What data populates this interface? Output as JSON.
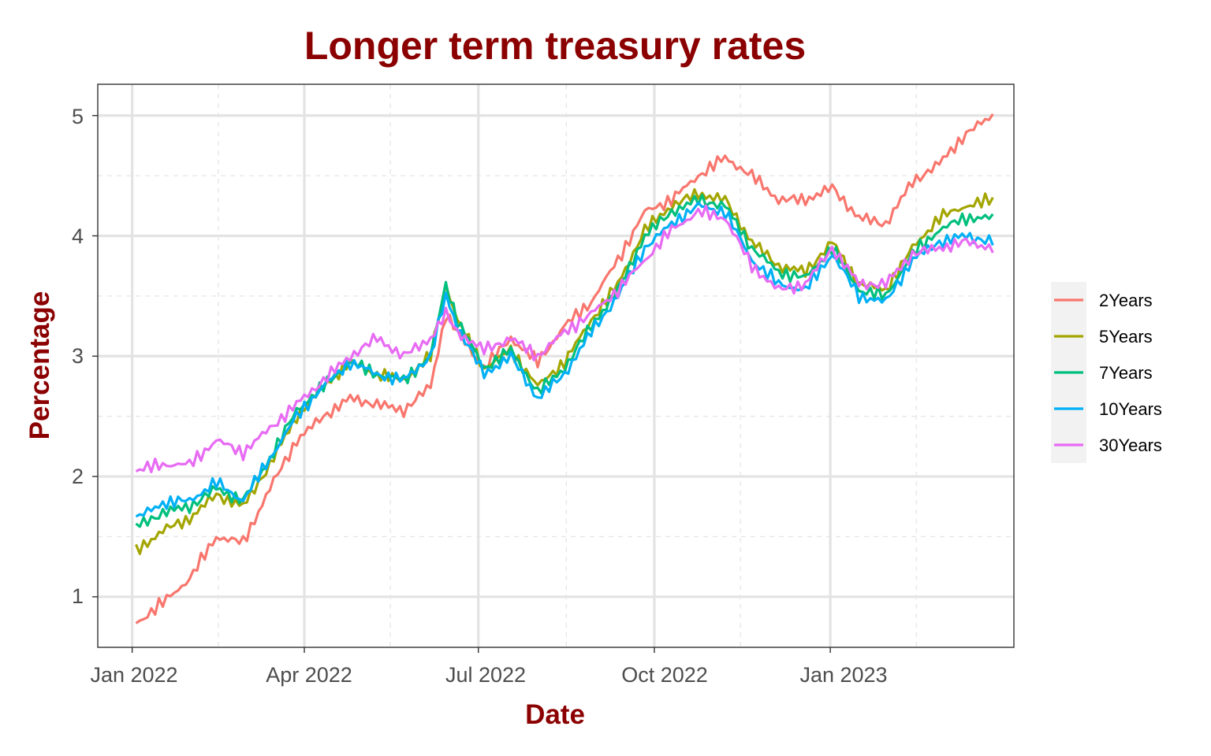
{
  "chart_data": {
    "type": "line",
    "title": "Longer term treasury rates",
    "xlabel": "Date",
    "ylabel": "Percentage",
    "x_ticks": [
      "Jan 2022",
      "Apr 2022",
      "Jul 2022",
      "Oct 2022",
      "Jan 2023"
    ],
    "y_ticks": [
      "1",
      "2",
      "3",
      "4",
      "5"
    ],
    "ylim": [
      0.58,
      5.26
    ],
    "xlim": [
      "2021-12-14",
      "2023-04-07"
    ],
    "grid": true,
    "legend": "right",
    "title_color": "#8B0000",
    "x": [
      "2022-01-03",
      "2022-01-17",
      "2022-01-31",
      "2022-02-14",
      "2022-02-28",
      "2022-03-14",
      "2022-03-28",
      "2022-04-11",
      "2022-04-25",
      "2022-05-09",
      "2022-05-23",
      "2022-06-06",
      "2022-06-14",
      "2022-06-20",
      "2022-07-04",
      "2022-07-18",
      "2022-08-01",
      "2022-08-15",
      "2022-08-29",
      "2022-09-12",
      "2022-09-26",
      "2022-10-10",
      "2022-10-24",
      "2022-11-07",
      "2022-11-21",
      "2022-12-05",
      "2022-12-19",
      "2023-01-02",
      "2023-01-16",
      "2023-01-30",
      "2023-02-13",
      "2023-02-27",
      "2023-03-13",
      "2023-03-27"
    ],
    "series": [
      {
        "name": "2Years",
        "color": "#F8766D",
        "values": [
          0.78,
          0.95,
          1.15,
          1.5,
          1.45,
          1.9,
          2.3,
          2.5,
          2.65,
          2.6,
          2.55,
          2.75,
          3.35,
          3.2,
          2.9,
          3.15,
          2.95,
          3.25,
          3.45,
          3.8,
          4.2,
          4.3,
          4.5,
          4.65,
          4.5,
          4.3,
          4.3,
          4.4,
          4.15,
          4.1,
          4.45,
          4.6,
          4.85,
          5.0
        ]
      },
      {
        "name": "5Years",
        "color": "#A3A500",
        "values": [
          1.38,
          1.55,
          1.65,
          1.85,
          1.75,
          2.1,
          2.5,
          2.75,
          2.95,
          2.85,
          2.8,
          3.0,
          3.6,
          3.3,
          2.9,
          3.05,
          2.75,
          2.95,
          3.3,
          3.6,
          4.05,
          4.25,
          4.35,
          4.3,
          3.95,
          3.75,
          3.7,
          3.95,
          3.6,
          3.55,
          3.9,
          4.15,
          4.25,
          4.3
        ]
      },
      {
        "name": "7Years",
        "color": "#00BF7D",
        "values": [
          1.58,
          1.7,
          1.75,
          1.9,
          1.8,
          2.15,
          2.55,
          2.75,
          2.95,
          2.85,
          2.8,
          3.0,
          3.6,
          3.3,
          2.9,
          3.05,
          2.7,
          2.9,
          3.25,
          3.55,
          4.0,
          4.2,
          4.3,
          4.25,
          3.9,
          3.7,
          3.65,
          3.9,
          3.55,
          3.5,
          3.85,
          4.05,
          4.15,
          4.15
        ]
      },
      {
        "name": "10Years",
        "color": "#00B0F6",
        "values": [
          1.65,
          1.78,
          1.8,
          1.95,
          1.8,
          2.15,
          2.5,
          2.75,
          2.95,
          2.85,
          2.8,
          3.0,
          3.5,
          3.25,
          2.85,
          3.0,
          2.65,
          2.85,
          3.2,
          3.5,
          3.9,
          4.1,
          4.25,
          4.2,
          3.8,
          3.6,
          3.55,
          3.85,
          3.5,
          3.45,
          3.8,
          3.95,
          4.0,
          3.95
        ]
      },
      {
        "name": "30Years",
        "color": "#E76BF3",
        "values": [
          2.05,
          2.1,
          2.1,
          2.3,
          2.2,
          2.4,
          2.6,
          2.8,
          3.0,
          3.15,
          3.0,
          3.15,
          3.35,
          3.2,
          3.05,
          3.15,
          3.0,
          3.2,
          3.35,
          3.55,
          3.8,
          4.05,
          4.2,
          4.15,
          3.75,
          3.55,
          3.6,
          3.9,
          3.6,
          3.6,
          3.85,
          3.9,
          3.95,
          3.9
        ]
      }
    ]
  }
}
